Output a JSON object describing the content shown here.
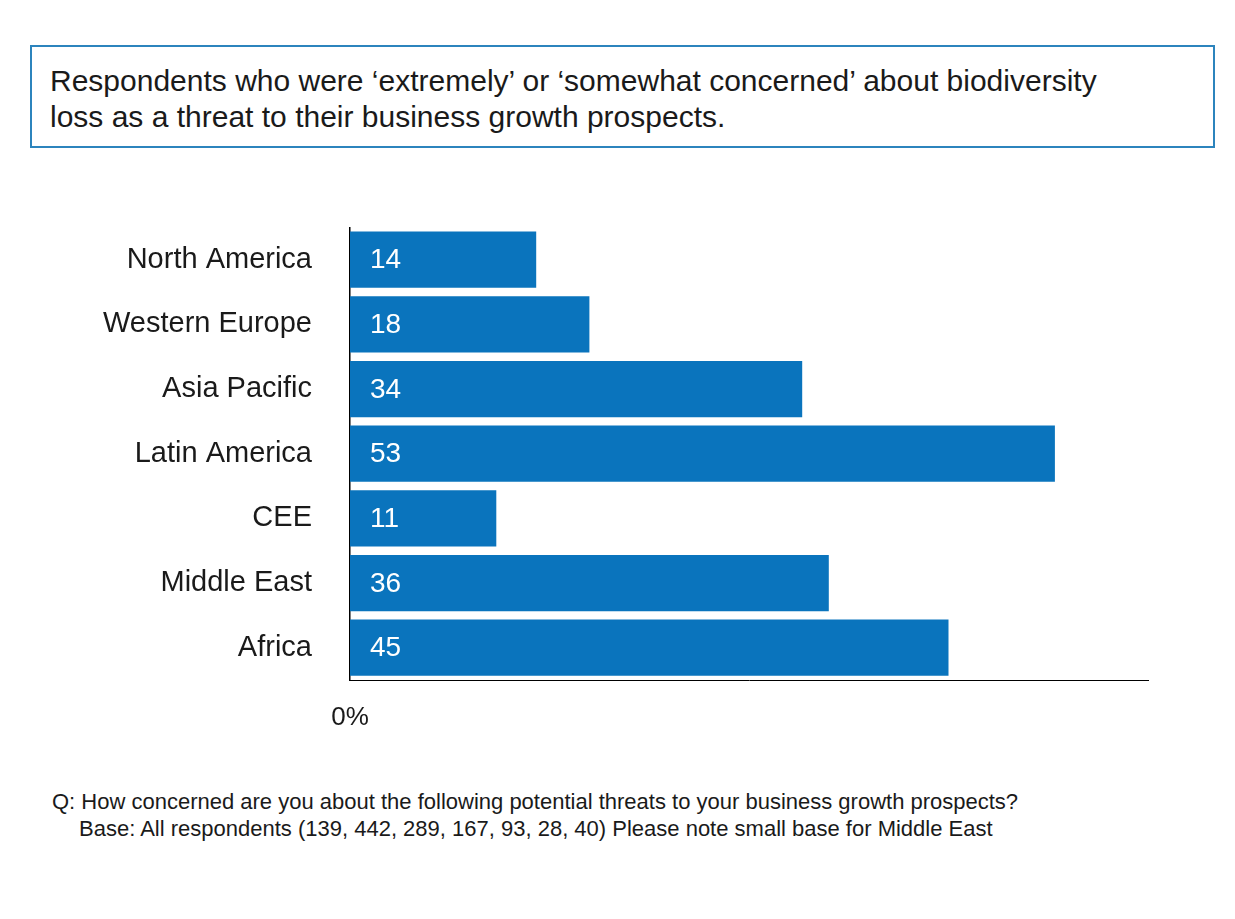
{
  "chart_data": {
    "type": "bar",
    "orientation": "horizontal",
    "title": "Respondents who were ‘extremely’ or ‘somewhat concerned’ about biodiversity loss as a threat to their business growth prospects.",
    "categories": [
      "North America",
      "Western Europe",
      "Asia Pacific",
      "Latin America",
      "CEE",
      "Middle East",
      "Africa"
    ],
    "values": [
      14,
      18,
      34,
      53,
      11,
      36,
      45
    ],
    "color": "#0a74bd",
    "xlim": [
      0,
      60
    ],
    "xticks": [
      {
        "value": 0,
        "label": "0%"
      }
    ],
    "grid": false,
    "data_labels": true,
    "annotations": [
      "Q: How concerned are you about the following potential threats to your business growth prospects?",
      "Base: All respondents (139, 442, 289, 167, 93, 28, 40)  Please note small base for Middle East"
    ]
  }
}
